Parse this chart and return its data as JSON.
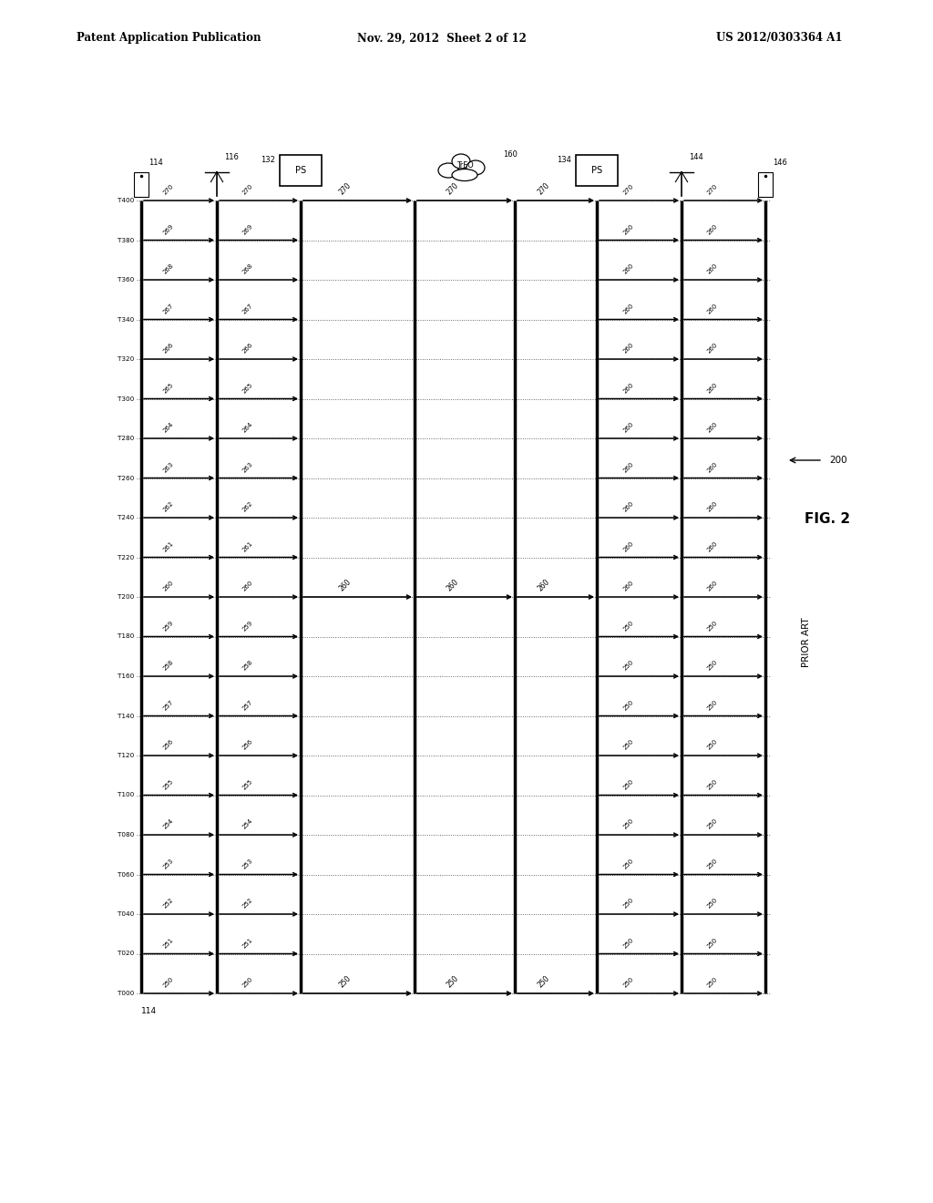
{
  "header_left": "Patent Application Publication",
  "header_mid": "Nov. 29, 2012  Sheet 2 of 12",
  "header_right": "US 2012/0303364 A1",
  "fig_label": "FIG. 2",
  "prior_art_label": "PRIOR ART",
  "ref_200": "200",
  "time_labels": [
    "T000",
    "T020",
    "T040",
    "T060",
    "T080",
    "T100",
    "T120",
    "T140",
    "T160",
    "T180",
    "T200",
    "T220",
    "T240",
    "T260",
    "T280",
    "T300",
    "T320",
    "T340",
    "T360",
    "T380",
    "T400"
  ],
  "pkt_full": [
    "250",
    "251",
    "252",
    "253",
    "254",
    "255",
    "256",
    "257",
    "258",
    "259",
    "260",
    "261",
    "262",
    "263",
    "264",
    "265",
    "266",
    "267",
    "268",
    "269",
    "270"
  ],
  "pkt_144": [
    "250",
    "250",
    "250",
    "250",
    "250",
    "250",
    "250",
    "250",
    "250",
    "250",
    "260",
    "260",
    "260",
    "260",
    "260",
    "260",
    "260",
    "260",
    "260",
    "260",
    "270"
  ],
  "pkt_sparse": [
    "250",
    "260",
    "270"
  ],
  "sparse_idx": [
    0,
    10,
    20
  ],
  "node_114": "114",
  "node_116": "116",
  "node_132": "132",
  "node_134": "134",
  "node_144": "144",
  "node_146": "146",
  "node_160": "160",
  "node_200": "200",
  "label_PS": "PS",
  "label_TrFO": "TrFO",
  "bg": "#ffffff"
}
